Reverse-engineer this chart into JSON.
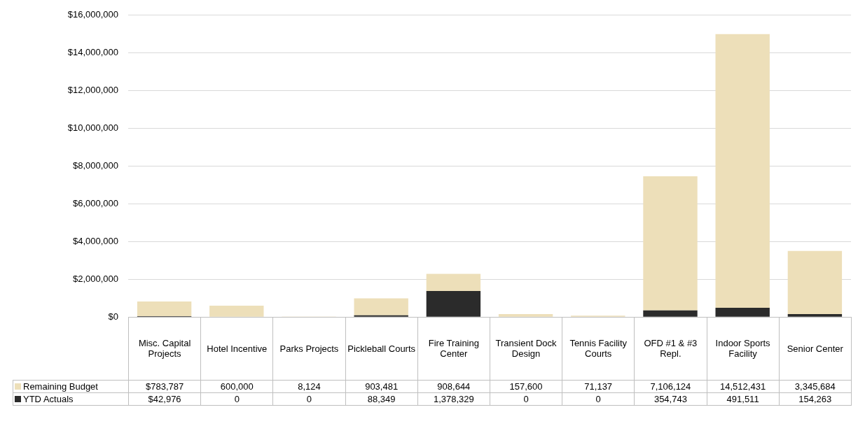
{
  "chart_data": {
    "type": "bar",
    "stacked": true,
    "grid": "y",
    "legend": "bottom",
    "categories": [
      "Misc. Capital Projects",
      "Hotel Incentive",
      "Parks Projects",
      "Pickleball Courts",
      "Fire Training Center",
      "Transient Dock Design",
      "Tennis Facility Courts",
      "OFD #1 & #3 Repl.",
      "Indoor Sports Facility",
      "Senior Center"
    ],
    "ylim": [
      0,
      16000000
    ],
    "yticks": [
      {
        "value": 0,
        "label": "$0"
      },
      {
        "value": 2000000,
        "label": "$2,000,000"
      },
      {
        "value": 4000000,
        "label": "$4,000,000"
      },
      {
        "value": 6000000,
        "label": "$6,000,000"
      },
      {
        "value": 8000000,
        "label": "$8,000,000"
      },
      {
        "value": 10000000,
        "label": "$10,000,000"
      },
      {
        "value": 12000000,
        "label": "$12,000,000"
      },
      {
        "value": 14000000,
        "label": "$14,000,000"
      },
      {
        "value": 16000000,
        "label": "$16,000,000"
      }
    ],
    "series": [
      {
        "name": "YTD Actuals",
        "color": "#2b2b2b",
        "values": [
          42976,
          0,
          0,
          88349,
          1378329,
          0,
          0,
          354743,
          491511,
          154263
        ],
        "value_labels": [
          "$42,976",
          "0",
          "0",
          "88,349",
          "1,378,329",
          "0",
          "0",
          "354,743",
          "491,511",
          "154,263"
        ]
      },
      {
        "name": "Remaining Budget",
        "color": "#eddfb9",
        "values": [
          783787,
          600000,
          8124,
          903481,
          908644,
          157600,
          71137,
          7106124,
          14512431,
          3345684
        ],
        "value_labels": [
          "$783,787",
          "600,000",
          "8,124",
          "903,481",
          "908,644",
          "157,600",
          "71,137",
          "7,106,124",
          "14,512,431",
          "3,345,684"
        ]
      }
    ]
  }
}
